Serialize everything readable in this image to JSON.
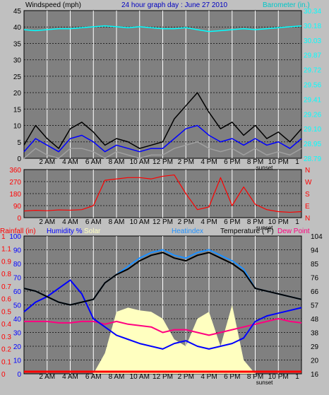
{
  "colors": {
    "background": "#c0c0c0",
    "plot_bg": "#808080",
    "grid": "#ffffff",
    "wind_avg": "#0000ff",
    "wind_gust": "#000000",
    "wind_lull": "#a0a0a0",
    "barometer": "#00ffff",
    "direction": "#ff0000",
    "temperature": "#000000",
    "heatindex": "#1e90ff",
    "humidity": "#0000ff",
    "dewpoint": "#ff0080",
    "solar": "#ffffc0",
    "rain": "#ff0000",
    "title": "#0000c0"
  },
  "header": {
    "wind_label": "Windspeed (mph)",
    "title": "24 hour graph day : June 27 2010",
    "baro_label": "Barometer (in.)"
  },
  "time_axis": {
    "labels": [
      "2 AM",
      "4 AM",
      "6 AM",
      "8 AM",
      "10 AM",
      "12 PM",
      "2 PM",
      "4 PM",
      "6 PM",
      "8 PM",
      "10 PM",
      "1"
    ],
    "sunset_label": "sunset"
  },
  "lower_legend": {
    "rainfall": "Rainfall (in)",
    "humidity": "Humidity %",
    "solar": "Solar",
    "heatindex": "Heatindex",
    "temperature": "Temperature (°F)",
    "dewpoint": "Dew Point"
  },
  "chart_data": [
    {
      "type": "line",
      "name": "wind",
      "ylabel": "Windspeed (mph)",
      "ylim": [
        0,
        45
      ],
      "yticks": [
        "45",
        "40",
        "35",
        "30",
        "25",
        "20",
        "15",
        "10",
        "5",
        "0"
      ],
      "y2label": "Barometer (in.)",
      "y2lim": [
        28.79,
        30.34
      ],
      "y2ticks": [
        "30.34",
        "30.18",
        "30.03",
        "29.87",
        "29.72",
        "29.56",
        "29.41",
        "29.26",
        "29.10",
        "28.95",
        "28.79"
      ],
      "x": [
        0,
        1,
        2,
        3,
        4,
        5,
        6,
        7,
        8,
        9,
        10,
        11,
        12,
        13,
        14,
        15,
        16,
        17,
        18,
        19,
        20,
        21,
        22,
        23,
        24
      ],
      "series": [
        {
          "name": "gust",
          "values": [
            4,
            10,
            6,
            3,
            9,
            11,
            8,
            4,
            6,
            5,
            3,
            4,
            5,
            12,
            16,
            20,
            14,
            9,
            11,
            7,
            10,
            6,
            8,
            5,
            9
          ]
        },
        {
          "name": "average",
          "values": [
            2,
            6,
            4,
            2,
            6,
            7,
            5,
            2,
            4,
            3,
            2,
            3,
            3,
            6,
            9,
            10,
            7,
            5,
            6,
            4,
            6,
            4,
            5,
            3,
            6
          ]
        },
        {
          "name": "lull",
          "values": [
            0,
            3,
            1,
            0,
            3,
            3,
            2,
            0,
            2,
            1,
            0,
            1,
            1,
            3,
            4,
            5,
            3,
            2,
            3,
            1,
            3,
            1,
            2,
            1,
            3
          ]
        },
        {
          "name": "barometer",
          "values": [
            30.14,
            30.13,
            30.14,
            30.15,
            30.15,
            30.16,
            30.17,
            30.18,
            30.17,
            30.16,
            30.17,
            30.16,
            30.15,
            30.15,
            30.16,
            30.14,
            30.12,
            30.13,
            30.14,
            30.15,
            30.14,
            30.15,
            30.16,
            30.17,
            30.18
          ]
        }
      ]
    },
    {
      "type": "line",
      "name": "wind_direction",
      "ylim": [
        0,
        360
      ],
      "yticks": [
        "360",
        "270",
        "180",
        "90",
        "0"
      ],
      "y2ticks": [
        "N",
        "W",
        "S",
        "E",
        "N"
      ],
      "x": [
        0,
        1,
        2,
        3,
        4,
        5,
        6,
        7,
        8,
        9,
        10,
        11,
        12,
        13,
        14,
        15,
        16,
        17,
        18,
        19,
        20,
        21,
        22,
        23,
        24
      ],
      "series": [
        {
          "name": "direction",
          "values": [
            50,
            55,
            52,
            58,
            56,
            60,
            90,
            280,
            290,
            300,
            300,
            290,
            310,
            320,
            180,
            60,
            80,
            300,
            90,
            230,
            100,
            60,
            45,
            40,
            45
          ]
        }
      ]
    },
    {
      "type": "line",
      "name": "temperature_humidity",
      "ylim": [
        0,
        100
      ],
      "yticks": [
        "100",
        "90",
        "80",
        "70",
        "60",
        "50",
        "40",
        "30",
        "20",
        "10",
        "0"
      ],
      "rain_ticks": [
        "1",
        "1.1",
        "0.9",
        "0.8",
        "0.7",
        "0.6",
        "0.5",
        "0.4",
        "0.3",
        "0.2",
        "0.1",
        "0"
      ],
      "y2lim": [
        16,
        104
      ],
      "y2ticks": [
        "104",
        "94",
        "85",
        "76",
        "66",
        "57",
        "48",
        "38",
        "29",
        "20",
        "16"
      ],
      "x": [
        0,
        1,
        2,
        3,
        4,
        5,
        6,
        7,
        8,
        9,
        10,
        11,
        12,
        13,
        14,
        15,
        16,
        17,
        18,
        19,
        20,
        21,
        22,
        23,
        24
      ],
      "series": [
        {
          "name": "temperature",
          "values": [
            62,
            60,
            56,
            52,
            50,
            52,
            54,
            66,
            72,
            76,
            82,
            86,
            88,
            84,
            82,
            86,
            88,
            84,
            80,
            74,
            62,
            60,
            58,
            56,
            54
          ]
        },
        {
          "name": "heatindex",
          "values": [
            62,
            60,
            56,
            52,
            50,
            52,
            54,
            66,
            72,
            78,
            84,
            88,
            90,
            86,
            84,
            88,
            90,
            86,
            82,
            76,
            62,
            60,
            58,
            56,
            54
          ]
        },
        {
          "name": "humidity",
          "values": [
            45,
            52,
            56,
            62,
            68,
            58,
            40,
            34,
            28,
            25,
            22,
            20,
            18,
            22,
            24,
            20,
            18,
            20,
            22,
            26,
            38,
            42,
            44,
            46,
            48
          ]
        },
        {
          "name": "dewpoint",
          "values": [
            38,
            38,
            38,
            37,
            37,
            38,
            38,
            36,
            38,
            36,
            35,
            34,
            30,
            32,
            32,
            30,
            28,
            30,
            32,
            34,
            36,
            38,
            40,
            38,
            37
          ]
        },
        {
          "name": "solar",
          "values": [
            0,
            0,
            0,
            0,
            0,
            0,
            0,
            15,
            45,
            48,
            46,
            45,
            40,
            25,
            20,
            40,
            45,
            20,
            50,
            10,
            0,
            0,
            0,
            0,
            0
          ]
        },
        {
          "name": "rain",
          "values": [
            0,
            0,
            0,
            0,
            0,
            0,
            0,
            0,
            0,
            0,
            0,
            0,
            0,
            0,
            0,
            0,
            0,
            0,
            0,
            0,
            0,
            0,
            0,
            0,
            0
          ]
        }
      ]
    }
  ]
}
